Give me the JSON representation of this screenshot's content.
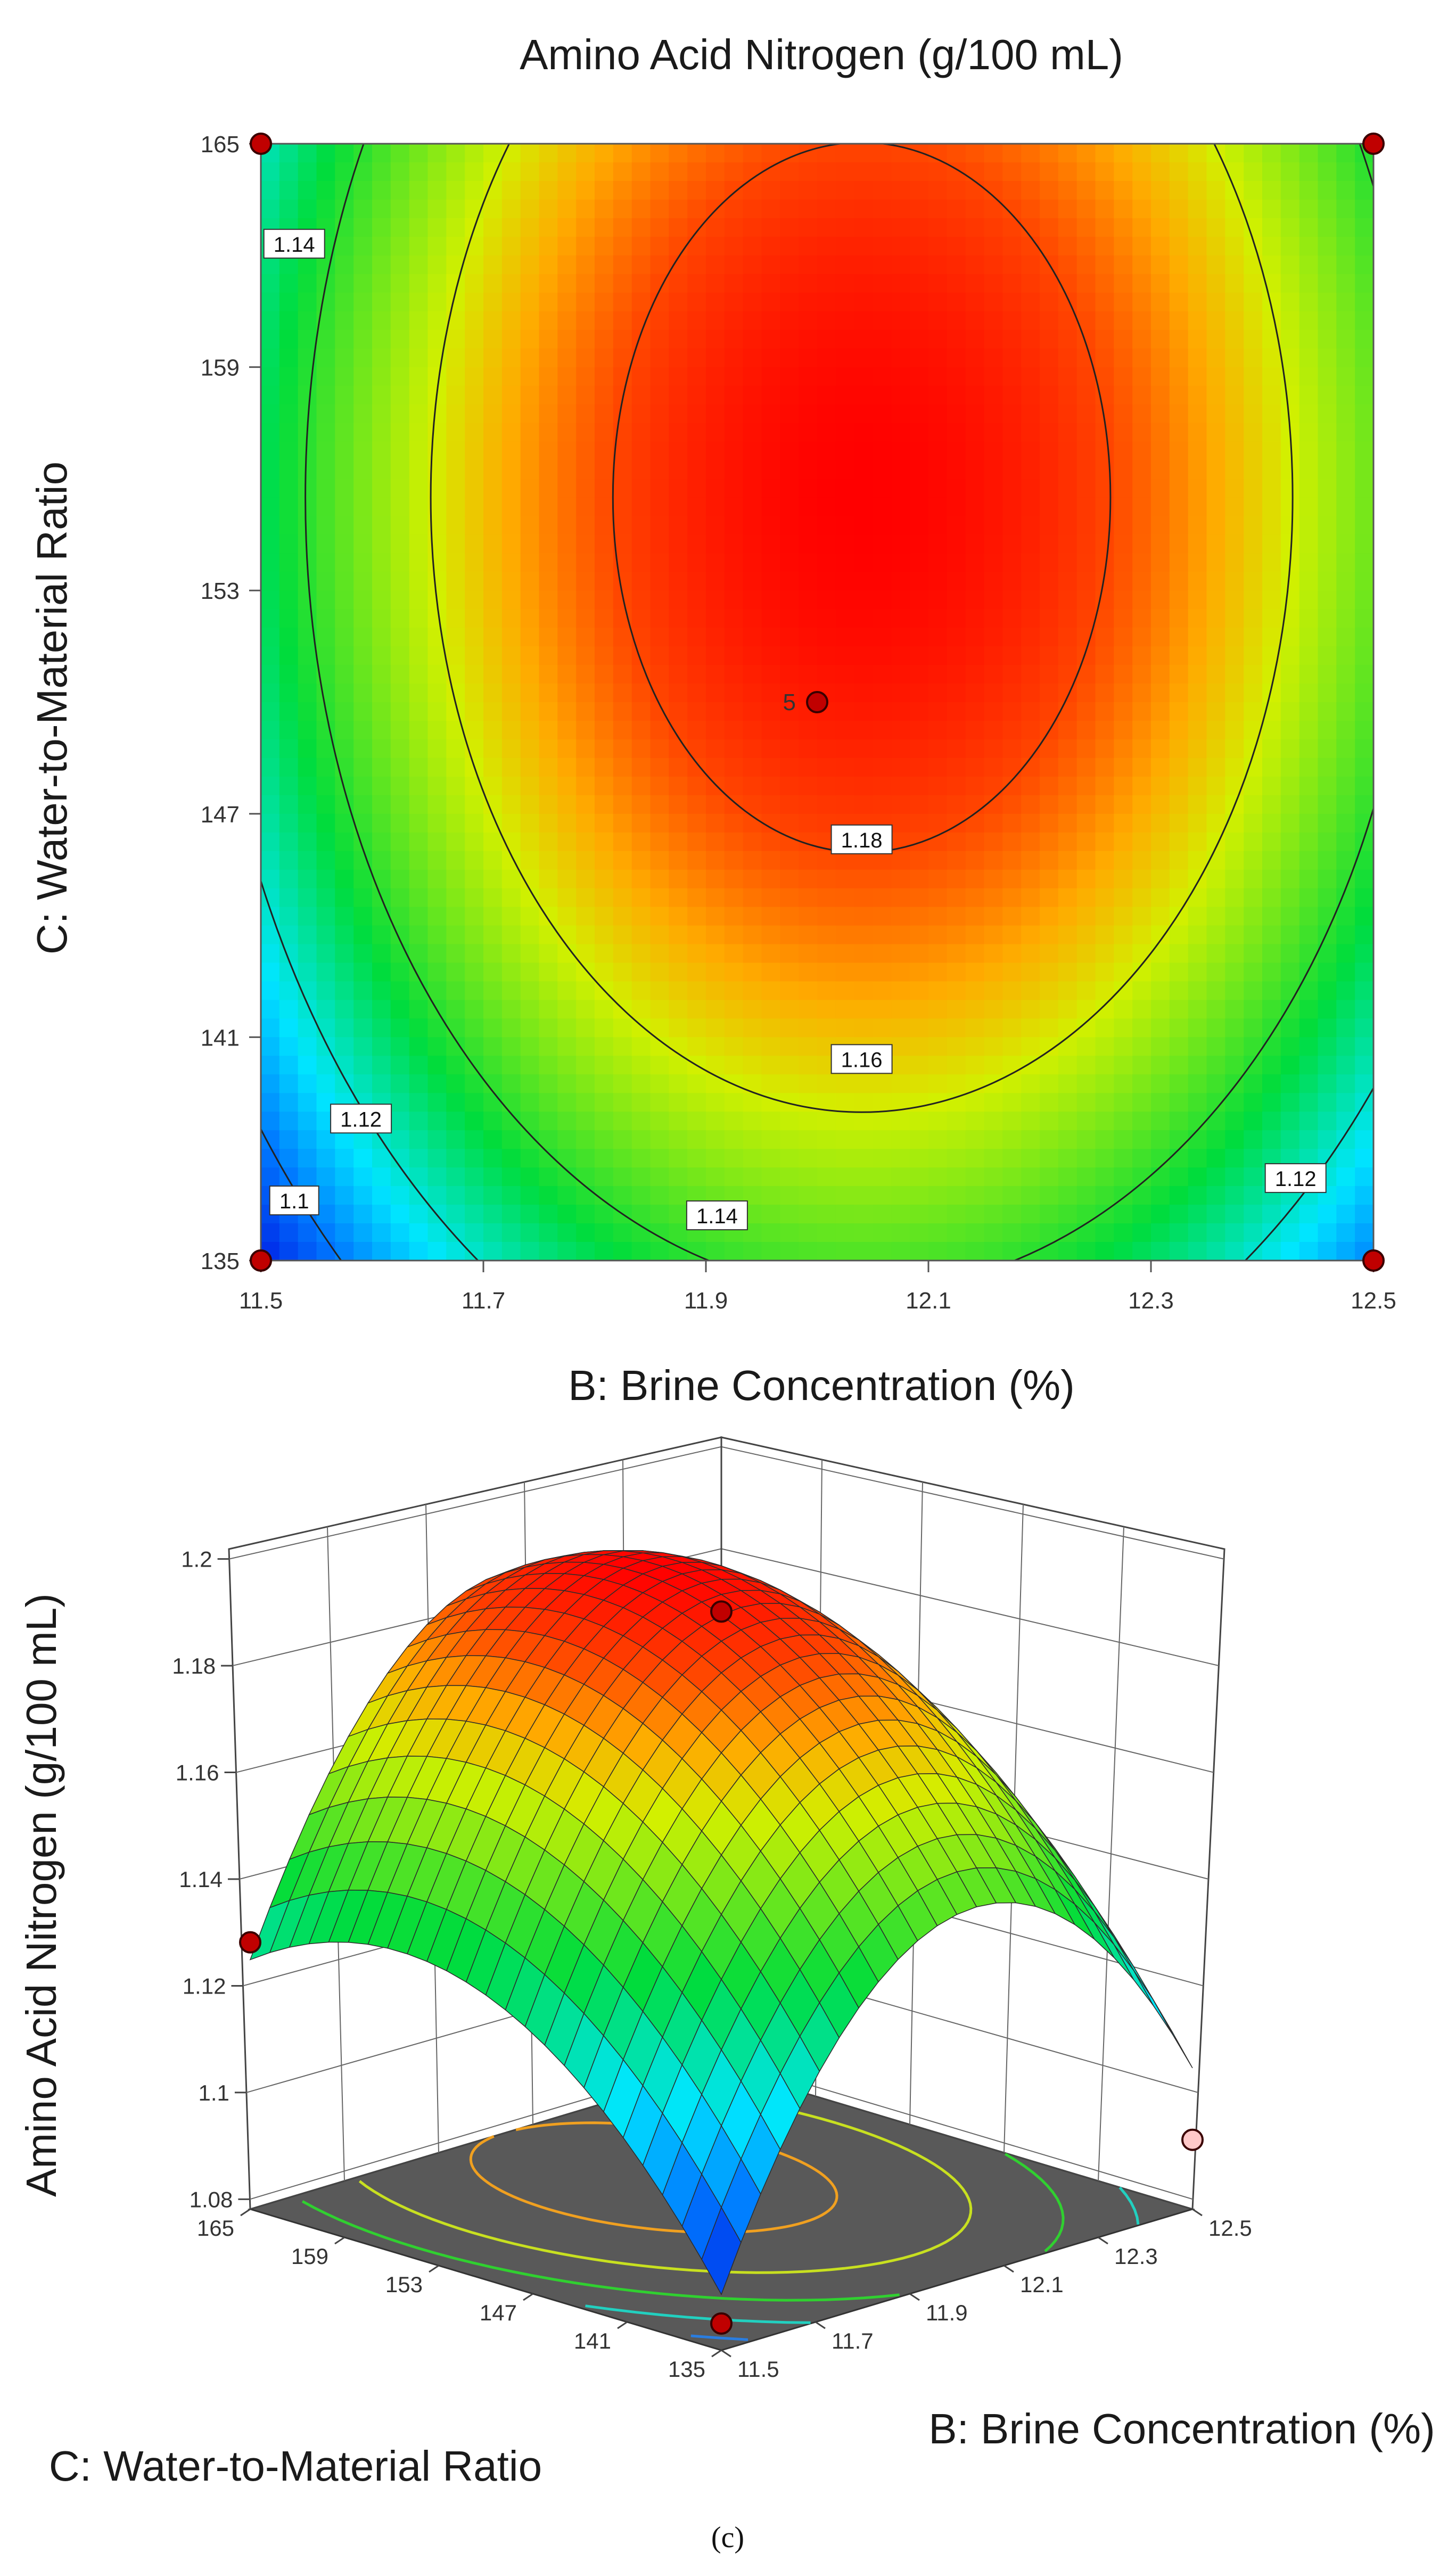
{
  "chart_data": [
    {
      "type": "contour",
      "title": "Amino Acid Nitrogen (g/100 mL)",
      "xlabel": "B: Brine Concentration (%)",
      "ylabel": "C: Water-to-Material Ratio",
      "xlim": [
        11.5,
        12.5
      ],
      "ylim": [
        135,
        165
      ],
      "x_ticks": [
        "11.5",
        "11.7",
        "11.9",
        "12.1",
        "12.3",
        "12.5"
      ],
      "y_ticks": [
        "135",
        "141",
        "147",
        "153",
        "159",
        "165"
      ],
      "model": {
        "center_x": 12.04,
        "center_y": 155.5,
        "max": 1.19,
        "kx": 0.2,
        "ky": 0.00011
      },
      "contour_levels": [
        1.1,
        1.12,
        1.14,
        1.16,
        1.18
      ],
      "contour_labels": [
        {
          "text": "1.18",
          "x": 12.04,
          "y": 146.3
        },
        {
          "text": "1.16",
          "x": 12.04,
          "y": 140.4
        },
        {
          "text": "1.14",
          "x": 11.91,
          "y": 136.2
        },
        {
          "text": "1.14",
          "x": 11.53,
          "y": 162.3
        },
        {
          "text": "1.12",
          "x": 11.59,
          "y": 138.8
        },
        {
          "text": "1.12",
          "x": 12.43,
          "y": 137.2
        },
        {
          "text": "1.1",
          "x": 11.53,
          "y": 136.6
        }
      ],
      "design_points": [
        {
          "x": 11.5,
          "y": 165
        },
        {
          "x": 12.5,
          "y": 165
        },
        {
          "x": 11.5,
          "y": 135
        },
        {
          "x": 12.5,
          "y": 135
        },
        {
          "x": 12.0,
          "y": 150,
          "label": "5"
        }
      ]
    },
    {
      "type": "surface3d",
      "zlabel": "Amino Acid Nitrogen (g/100 mL)",
      "xlabel": "B: Brine Concentration (%)",
      "ylabel": "C: Water-to-Material Ratio",
      "zlim": [
        1.08,
        1.2
      ],
      "z_ticks": [
        "1.08",
        "1.1",
        "1.12",
        "1.14",
        "1.16",
        "1.18",
        "1.2"
      ],
      "x_ticks": [
        "11.5",
        "11.7",
        "11.9",
        "12.1",
        "12.3",
        "12.5"
      ],
      "y_ticks": [
        "135",
        "141",
        "147",
        "153",
        "159",
        "165"
      ],
      "design_points": [
        {
          "b": 12.0,
          "c": 150,
          "z": 1.187
        },
        {
          "b": 11.5,
          "c": 165,
          "z": 1.125
        },
        {
          "b": 12.5,
          "c": 135,
          "z": 1.088
        },
        {
          "b": 11.5,
          "c": 135,
          "z": 1.08
        }
      ]
    }
  ],
  "caption": "(c)"
}
